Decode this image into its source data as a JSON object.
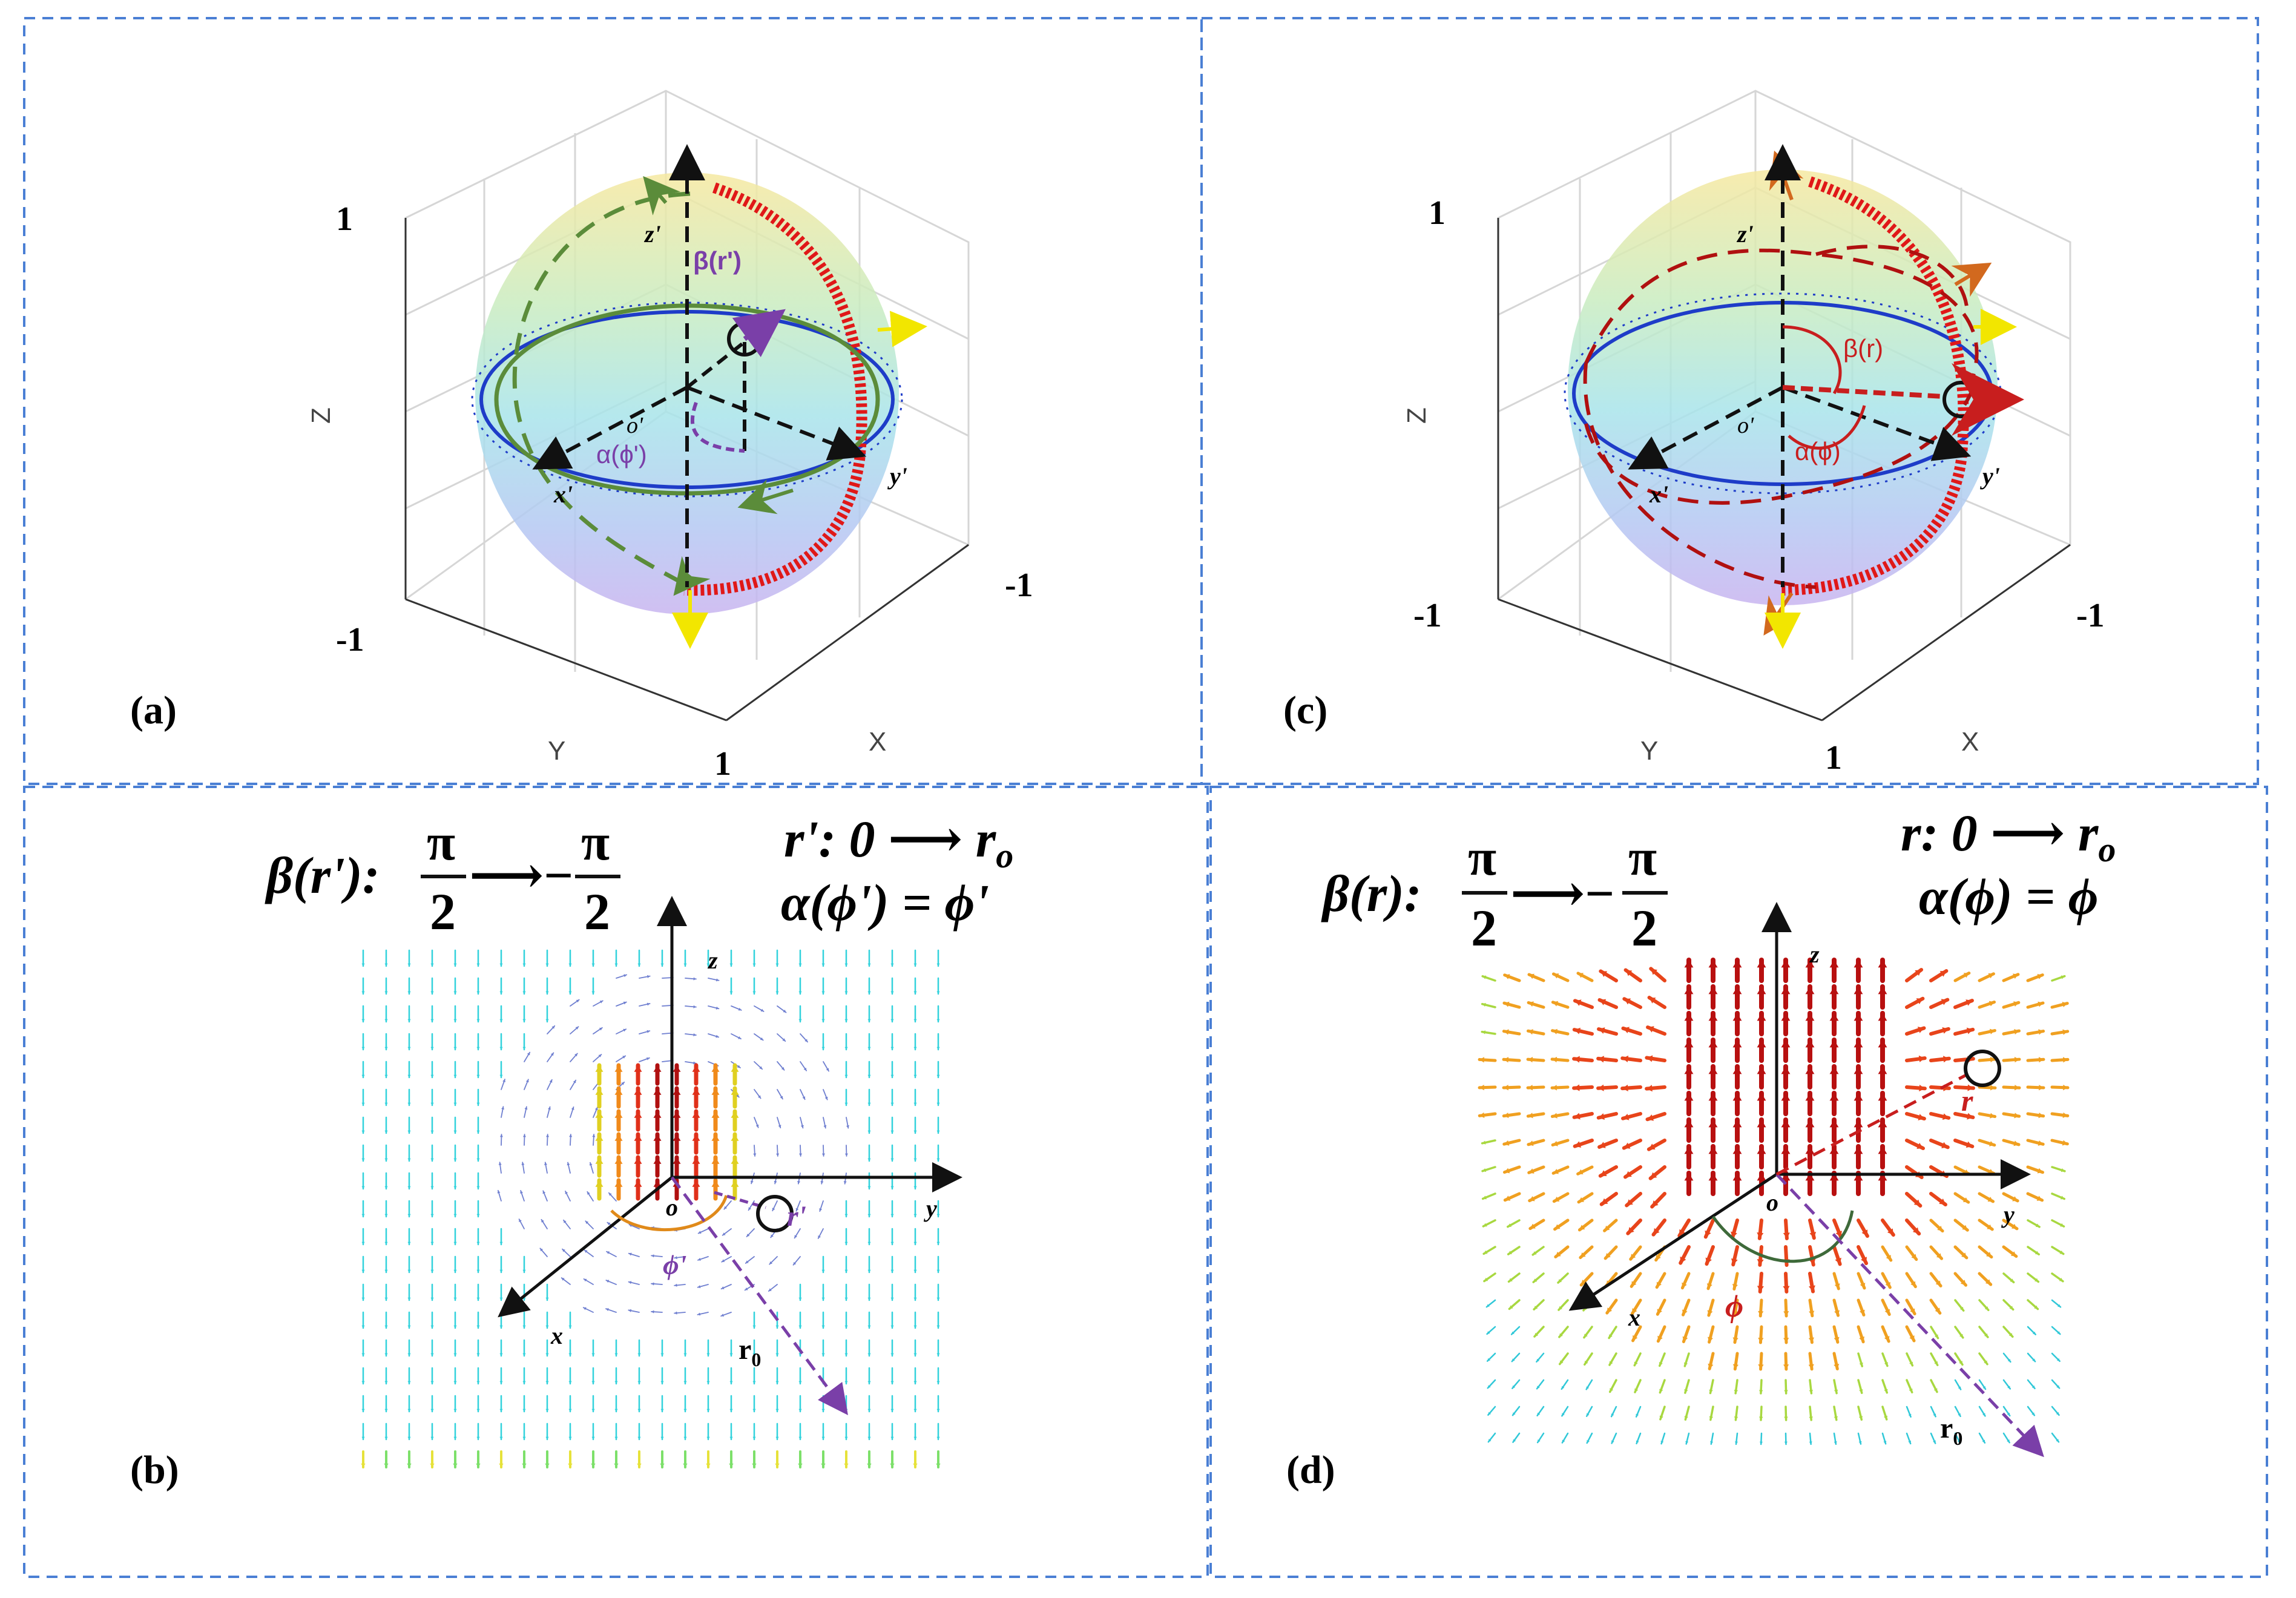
{
  "panels": {
    "a": {
      "label": "(a)",
      "axes": {
        "z_label": "Z",
        "y_label": "Y",
        "x_label": "X",
        "tick_top": "1",
        "tick_bottom_left": "-1",
        "tick_right": "-1",
        "tick_bottom_right": "1"
      },
      "local_axes": {
        "z": "z'",
        "x": "x'",
        "y": "y'",
        "origin": "o'"
      },
      "angles": {
        "beta": "β(r')",
        "alpha": "α(ϕ')"
      }
    },
    "c": {
      "label": "(c)",
      "axes": {
        "z_label": "Z",
        "y_label": "Y",
        "x_label": "X",
        "tick_top": "1",
        "tick_bottom_left": "-1",
        "tick_right": "-1",
        "tick_bottom_right": "1"
      },
      "local_axes": {
        "z": "z'",
        "x": "x'",
        "y": "y'",
        "origin": "o'"
      },
      "angles": {
        "beta": "β(r)",
        "alpha": "α(ϕ)"
      }
    },
    "b": {
      "label": "(b)",
      "eq_beta_prefix": "β(r'):",
      "eq_frac_num": "π",
      "eq_frac_den": "2",
      "eq_arrow": "⟶−",
      "eq_r": "r': 0 ⟶ r",
      "eq_r_sub": "o",
      "eq_alpha": "α(ϕ') = ϕ'",
      "axes": {
        "z": "z",
        "x": "x",
        "y": "y",
        "origin": "o"
      },
      "r_label": "r'",
      "phi_label": "ϕ'",
      "r0_label": "r",
      "r0_sub": "0"
    },
    "d": {
      "label": "(d)",
      "eq_beta_prefix": "β(r):",
      "eq_frac_num": "π",
      "eq_frac_den": "2",
      "eq_arrow": "⟶−",
      "eq_r": "r: 0 ⟶ r",
      "eq_r_sub": "o",
      "eq_alpha": "α(ϕ) = ϕ",
      "axes": {
        "z": "z",
        "x": "x",
        "y": "y",
        "origin": "o"
      },
      "r_label": "r",
      "phi_label": "ϕ",
      "r0_label": "r",
      "r0_sub": "0"
    }
  },
  "colors": {
    "frame": "#4a7fd4",
    "green": "#5b8c3a",
    "purple": "#7a3fa8",
    "red": "#c81e1e",
    "darkred": "#b01010",
    "orange": "#d2691e",
    "yellow": "#f2e600",
    "blue": "#1e3cc8",
    "grid": "#d6d6d6"
  }
}
